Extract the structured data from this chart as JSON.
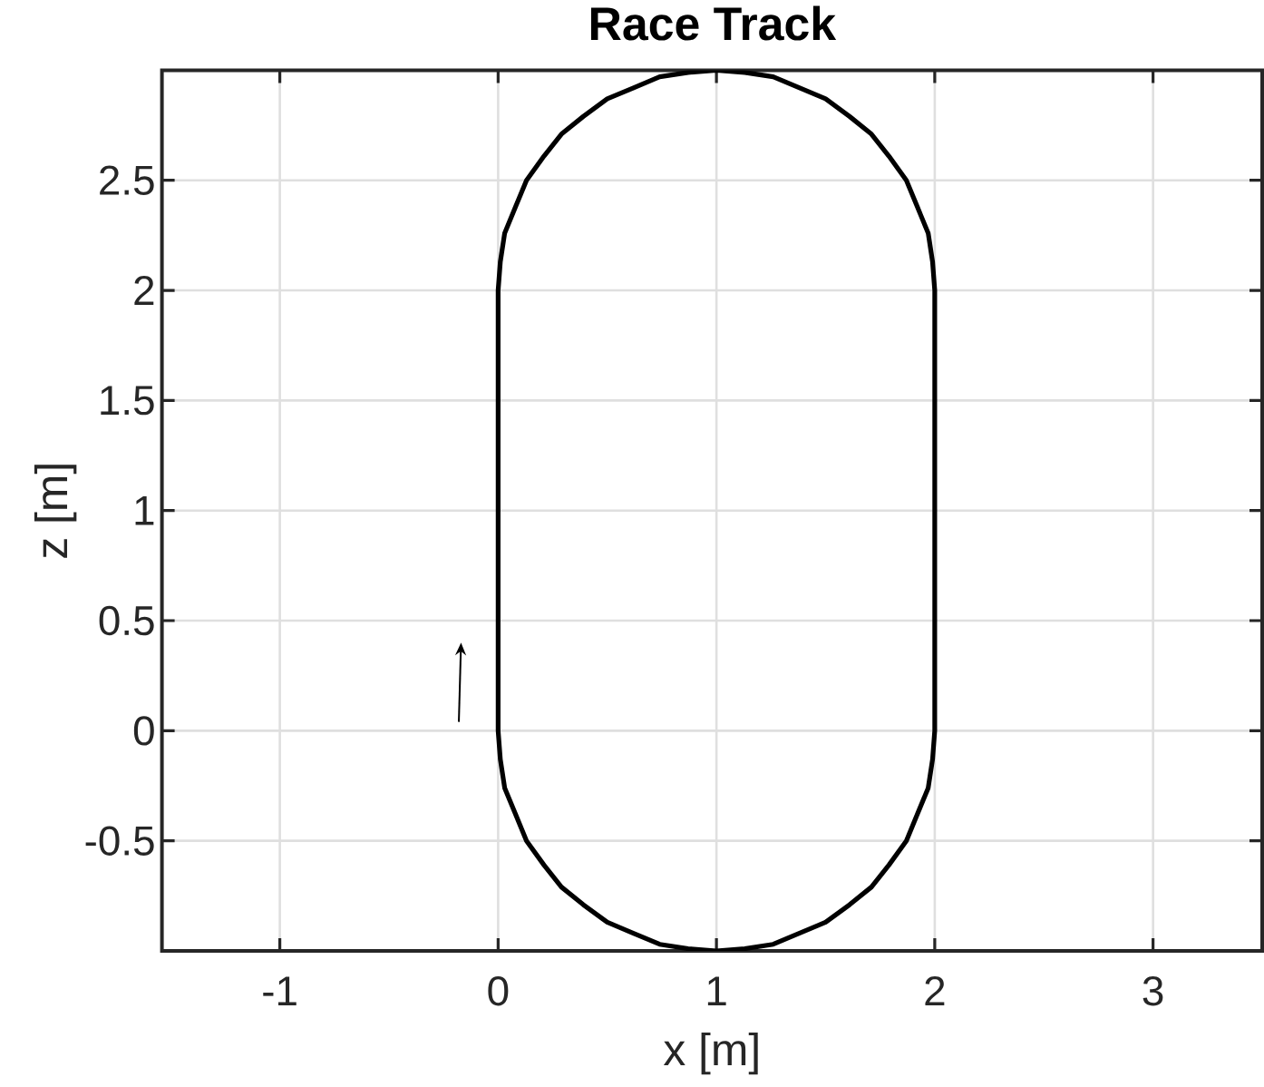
{
  "chart_data": {
    "type": "line",
    "title": "Race Track",
    "xlabel": "x [m]",
    "ylabel": "z [m]",
    "xlim": [
      -1.54,
      3.5
    ],
    "ylim": [
      -1,
      3
    ],
    "xticks": [
      -1,
      0,
      1,
      2,
      3
    ],
    "yticks": [
      -0.5,
      0,
      0.5,
      1,
      1.5,
      2,
      2.5
    ],
    "grid": true,
    "line_style": "solid",
    "series": [
      {
        "color": "#000000",
        "x": [
          0,
          0,
          0.01,
          0.03,
          0.08,
          0.13,
          0.21,
          0.29,
          0.39,
          0.5,
          0.62,
          0.74,
          0.87,
          1,
          1.13,
          1.26,
          1.38,
          1.5,
          1.61,
          1.71,
          1.79,
          1.87,
          1.92,
          1.97,
          1.99,
          2,
          2,
          1.99,
          1.97,
          1.92,
          1.87,
          1.79,
          1.71,
          1.61,
          1.5,
          1.38,
          1.26,
          1.13,
          1,
          0.87,
          0.74,
          0.62,
          0.5,
          0.39,
          0.29,
          0.21,
          0.13,
          0.08,
          0.03,
          0.01,
          0,
          0
        ],
        "values": [
          0,
          2,
          2.13,
          2.26,
          2.38,
          2.5,
          2.61,
          2.71,
          2.79,
          2.87,
          2.92,
          2.97,
          2.99,
          3,
          2.99,
          2.97,
          2.92,
          2.87,
          2.79,
          2.71,
          2.61,
          2.5,
          2.38,
          2.26,
          2.13,
          2,
          0,
          -0.13,
          -0.26,
          -0.38,
          -0.5,
          -0.61,
          -0.71,
          -0.79,
          -0.87,
          -0.92,
          -0.97,
          -0.99,
          -1,
          -0.99,
          -0.97,
          -0.92,
          -0.87,
          -0.79,
          -0.71,
          -0.61,
          -0.5,
          -0.38,
          -0.26,
          -0.13,
          0,
          0.5
        ]
      }
    ]
  }
}
